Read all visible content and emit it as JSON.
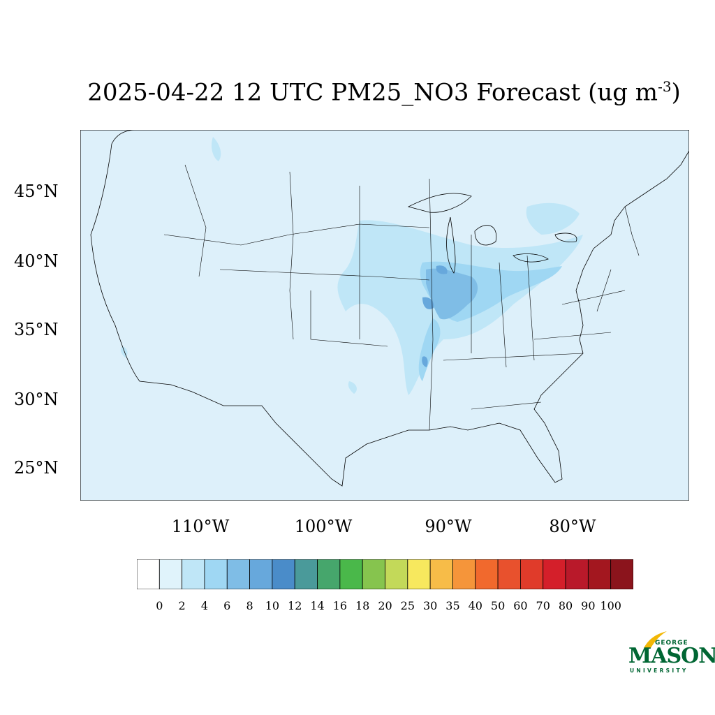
{
  "title": {
    "text": "2025-04-22 12 UTC PM25_NO3 Forecast (ug m",
    "superscript": "-3",
    "closing": ")"
  },
  "map": {
    "background_color": "#ddf0fa",
    "lat_labels": [
      "45°N",
      "40°N",
      "35°N",
      "30°N",
      "25°N"
    ],
    "lon_labels": [
      "110°W",
      "100°W",
      "90°W",
      "80°W"
    ]
  },
  "colorbar": {
    "labels": [
      "0",
      "2",
      "4",
      "6",
      "8",
      "10",
      "12",
      "14",
      "16",
      "18",
      "20",
      "25",
      "30",
      "35",
      "40",
      "50",
      "60",
      "70",
      "80",
      "90",
      "100"
    ],
    "colors": [
      "#ffffff",
      "#e0f3fb",
      "#bfe6f7",
      "#9fd7f3",
      "#7fbde6",
      "#67a8dc",
      "#4a8cc9",
      "#4a9a9a",
      "#46a66c",
      "#4ab84a",
      "#86c44e",
      "#c3d959",
      "#f7e85e",
      "#f7bc48",
      "#f5953a",
      "#f1692d",
      "#e8512d",
      "#e03b2a",
      "#d41f2a",
      "#b9192a",
      "#a3171f",
      "#8b141c"
    ]
  },
  "logo": {
    "george": "GEORGE",
    "mason": "MASON",
    "university": "UNIVERSITY"
  }
}
